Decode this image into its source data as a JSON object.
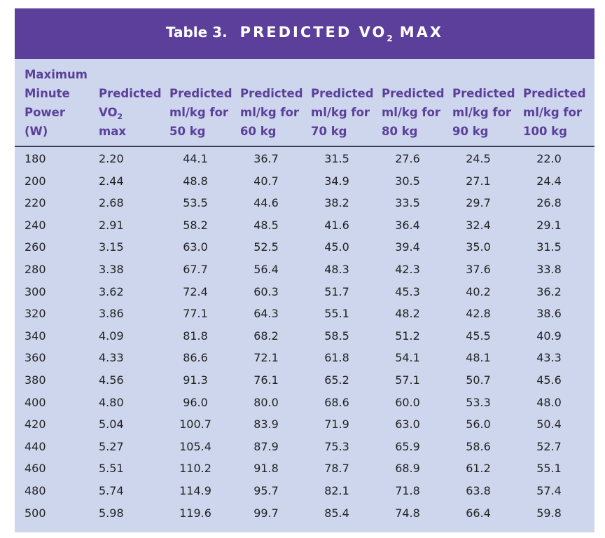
{
  "title": {
    "caption": "Table 3.",
    "main": "PREDICTED VO",
    "sub": "2",
    "suffix": "MAX"
  },
  "columns": [
    {
      "lines": [
        "Maximum",
        "Minute",
        "Power",
        "(W)"
      ]
    },
    {
      "lines": [
        "Predicted",
        "VO",
        "max"
      ],
      "sub": "2"
    },
    {
      "lines": [
        "Predicted",
        "ml/kg for",
        "50 kg"
      ]
    },
    {
      "lines": [
        "Predicted",
        "ml/kg for",
        "60 kg"
      ]
    },
    {
      "lines": [
        "Predicted",
        "ml/kg for",
        "70 kg"
      ]
    },
    {
      "lines": [
        "Predicted",
        "ml/kg for",
        "80 kg"
      ]
    },
    {
      "lines": [
        "Predicted",
        "ml/kg for",
        "90 kg"
      ]
    },
    {
      "lines": [
        "Predicted",
        "ml/kg for",
        "100 kg"
      ]
    }
  ],
  "rows": [
    [
      "180",
      "2.20",
      "44.1",
      "36.7",
      "31.5",
      "27.6",
      "24.5",
      "22.0"
    ],
    [
      "200",
      "2.44",
      "48.8",
      "40.7",
      "34.9",
      "30.5",
      "27.1",
      "24.4"
    ],
    [
      "220",
      "2.68",
      "53.5",
      "44.6",
      "38.2",
      "33.5",
      "29.7",
      "26.8"
    ],
    [
      "240",
      "2.91",
      "58.2",
      "48.5",
      "41.6",
      "36.4",
      "32.4",
      "29.1"
    ],
    [
      "260",
      "3.15",
      "63.0",
      "52.5",
      "45.0",
      "39.4",
      "35.0",
      "31.5"
    ],
    [
      "280",
      "3.38",
      "67.7",
      "56.4",
      "48.3",
      "42.3",
      "37.6",
      "33.8"
    ],
    [
      "300",
      "3.62",
      "72.4",
      "60.3",
      "51.7",
      "45.3",
      "40.2",
      "36.2"
    ],
    [
      "320",
      "3.86",
      "77.1",
      "64.3",
      "55.1",
      "48.2",
      "42.8",
      "38.6"
    ],
    [
      "340",
      "4.09",
      "81.8",
      "68.2",
      "58.5",
      "51.2",
      "45.5",
      "40.9"
    ],
    [
      "360",
      "4.33",
      "86.6",
      "72.1",
      "61.8",
      "54.1",
      "48.1",
      "43.3"
    ],
    [
      "380",
      "4.56",
      "91.3",
      "76.1",
      "65.2",
      "57.1",
      "50.7",
      "45.6"
    ],
    [
      "400",
      "4.80",
      "96.0",
      "80.0",
      "68.6",
      "60.0",
      "53.3",
      "48.0"
    ],
    [
      "420",
      "5.04",
      "100.7",
      "83.9",
      "71.9",
      "63.0",
      "56.0",
      "50.4"
    ],
    [
      "440",
      "5.27",
      "105.4",
      "87.9",
      "75.3",
      "65.9",
      "58.6",
      "52.7"
    ],
    [
      "460",
      "5.51",
      "110.2",
      "91.8",
      "78.7",
      "68.9",
      "61.2",
      "55.1"
    ],
    [
      "480",
      "5.74",
      "114.9",
      "95.7",
      "82.1",
      "71.8",
      "63.8",
      "57.4"
    ],
    [
      "500",
      "5.98",
      "119.6",
      "99.7",
      "85.4",
      "74.8",
      "66.4",
      "59.8"
    ]
  ]
}
